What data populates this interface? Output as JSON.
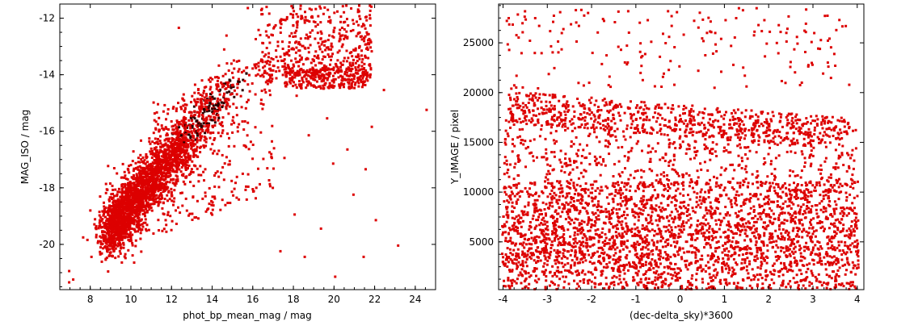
{
  "chart_data": [
    {
      "type": "scatter",
      "xlabel": "phot_bp_mean_mag / mag",
      "ylabel": "MAG_ISO / mag",
      "xlim": [
        6.5,
        25.0
      ],
      "ylim": [
        -21.6,
        -11.5
      ],
      "y_inverted": true,
      "xticks": [
        8,
        10,
        12,
        14,
        16,
        18,
        20,
        22,
        24
      ],
      "yticks": [
        -12,
        -14,
        -16,
        -18,
        -20
      ],
      "grid": false,
      "marker_color": "#dd0000",
      "dense_color": "#2a0000",
      "marker": "small-square",
      "points": [
        [
          15.7,
          -11.6
        ],
        [
          12.3,
          -12.3
        ],
        [
          24.5,
          -15.2
        ],
        [
          23.1,
          -20.0
        ],
        [
          20.0,
          -21.1
        ],
        [
          6.9,
          -21.3
        ],
        [
          7.1,
          -21.2
        ],
        [
          6.9,
          -20.9
        ],
        [
          8.0,
          -20.4
        ],
        [
          8.7,
          -20.5
        ],
        [
          7.8,
          -19.8
        ],
        [
          10.1,
          -20.6
        ],
        [
          17.3,
          -20.2
        ],
        [
          18.5,
          -20.4
        ],
        [
          21.4,
          -20.4
        ],
        [
          19.3,
          -19.4
        ],
        [
          22.0,
          -19.1
        ],
        [
          18.0,
          -18.9
        ],
        [
          16.8,
          -17.9
        ],
        [
          19.9,
          -17.1
        ],
        [
          20.6,
          -16.6
        ],
        [
          18.7,
          -16.1
        ],
        [
          21.5,
          -17.3
        ],
        [
          22.4,
          -14.5
        ],
        [
          16.9,
          -14.1
        ],
        [
          18.1,
          -14.7
        ],
        [
          19.6,
          -15.5
        ],
        [
          20.9,
          -18.2
        ],
        [
          21.8,
          -15.8
        ],
        [
          17.5,
          -16.9
        ]
      ],
      "clusters": [
        {
          "name": "main-sequence",
          "from": [
            8.8,
            -19.6
          ],
          "to": [
            15.6,
            -13.7
          ],
          "width": 0.55
        },
        {
          "name": "upper-branch",
          "from": [
            16.0,
            -13.9
          ],
          "to": [
            21.8,
            -13.8
          ],
          "spread_y": 1.4
        }
      ]
    },
    {
      "type": "scatter",
      "xlabel": "(dec-delta_sky)*3600",
      "ylabel": "Y_IMAGE / pixel",
      "xlim": [
        -4.1,
        4.15
      ],
      "ylim": [
        200,
        28900
      ],
      "xticks": [
        -4,
        -3,
        -2,
        -1,
        0,
        1,
        2,
        3,
        4
      ],
      "yticks": [
        5000,
        10000,
        15000,
        20000,
        25000
      ],
      "ytick_labels": [
        "5000",
        "10000",
        "15000",
        "20000",
        "25000"
      ],
      "grid": false,
      "marker_color": "#dd0000",
      "marker": "small-square",
      "points": [
        [
          -3.9,
          27600
        ],
        [
          -3.3,
          27600
        ],
        [
          -1.5,
          27200
        ],
        [
          -1.2,
          28300
        ],
        [
          -0.3,
          28300
        ],
        [
          -0.1,
          28200
        ],
        [
          1.3,
          28600
        ],
        [
          1.7,
          28600
        ],
        [
          3.5,
          26400
        ],
        [
          1.0,
          27400
        ],
        [
          2.2,
          26900
        ],
        [
          -2.7,
          26100
        ],
        [
          0.5,
          25300
        ],
        [
          2.8,
          24200
        ],
        [
          -0.9,
          22800
        ]
      ],
      "bands": [
        {
          "name": "upper-band",
          "y_min": 17000,
          "y_max": 20800,
          "density_left": "high",
          "density_right": "low"
        },
        {
          "name": "lower-band",
          "y_min": 200,
          "y_max": 11500,
          "density_left": "high",
          "density_right": "high"
        }
      ]
    }
  ]
}
